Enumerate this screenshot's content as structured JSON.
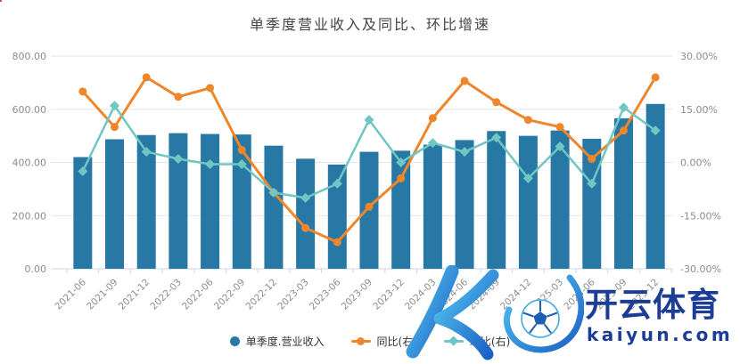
{
  "title": "单季度营业收入及同比、环比增速",
  "legend": {
    "revenue_label": "单季度.营业收入",
    "yoy_label": "同比(右)",
    "qoq_label": "环比(右)"
  },
  "watermark": {
    "brand": "开云体育",
    "site": "kaiyun.com"
  },
  "colors": {
    "bar": "#2878A5",
    "yoy": "#F0862B",
    "qoq": "#6FC6C2",
    "grid": "#E6E6E6",
    "axis_line": "#C9D6EA",
    "tick_text": "#8C8C8C",
    "title_text": "#454545",
    "navy": "#1B3D96",
    "logo_grad_start": "#55C8F2",
    "logo_grad_end": "#1A5FC4",
    "ball_outline": "#3FA9E0",
    "ball_pattern": "#1E5FB5"
  },
  "chart_data": {
    "type": "bar",
    "combo": "bar+line",
    "title": "单季度营业收入及同比、环比增速",
    "categories": [
      "2021-06",
      "2021-09",
      "2021-12",
      "2022-03",
      "2022-06",
      "2022-09",
      "2022-12",
      "2023-03",
      "2023-06",
      "2023-09",
      "2023-12",
      "2024-03",
      "2024-06",
      "2024-09",
      "2024-12",
      "2025-03",
      "2025-06",
      "2025-09",
      "2025-12"
    ],
    "series": [
      {
        "name": "单季度.营业收入",
        "type": "bar",
        "axis": "left",
        "values": [
          420,
          487,
          503,
          510,
          507,
          505,
          463,
          414,
          392,
          440,
          444,
          467,
          484,
          518,
          500,
          520,
          489,
          566,
          620
        ]
      },
      {
        "name": "同比(右)",
        "type": "line",
        "axis": "right",
        "marker": "circle",
        "values": [
          20.0,
          10.0,
          24.0,
          18.5,
          21.0,
          3.5,
          -8.5,
          -18.5,
          -22.5,
          -12.5,
          -4.5,
          12.5,
          23.0,
          17.0,
          12.0,
          10.0,
          1.0,
          9.0,
          24.0
        ]
      },
      {
        "name": "环比(右)",
        "type": "line",
        "axis": "right",
        "marker": "diamond",
        "values": [
          -2.5,
          16.0,
          3.0,
          1.0,
          -0.5,
          -0.5,
          -8.5,
          -10.0,
          -6.0,
          12.0,
          0.0,
          5.5,
          3.0,
          7.0,
          -4.5,
          4.5,
          -6.0,
          15.5,
          9.0
        ]
      }
    ],
    "left_axis": {
      "min": 0,
      "max": 800,
      "tick_labels": [
        "800.00",
        "600.00",
        "400.00",
        "200.00",
        "0.00"
      ]
    },
    "right_axis": {
      "min": -30,
      "max": 30,
      "tick_labels": [
        "30.00%",
        "15.00%",
        "0.00%",
        "-15.00%",
        "-30.00%"
      ]
    },
    "grid": true,
    "legend_position": "bottom",
    "x_label_rotation": -45
  }
}
